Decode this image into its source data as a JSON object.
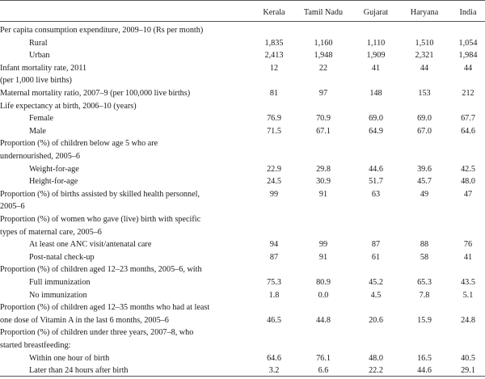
{
  "columns": [
    "Kerala",
    "Tamil Nadu",
    "Gujarat",
    "Haryana",
    "India"
  ],
  "rows": [
    {
      "label": "Per capita consumption expenditure, 2009–10 (Rs per month)",
      "indent": false,
      "values": [
        "",
        "",
        "",
        "",
        ""
      ]
    },
    {
      "label": "Rural",
      "indent": true,
      "values": [
        "1,835",
        "1,160",
        "1,110",
        "1,510",
        "1,054"
      ]
    },
    {
      "label": "Urban",
      "indent": true,
      "values": [
        "2,413",
        "1,948",
        "1,909",
        "2,321",
        "1,984"
      ]
    },
    {
      "label": "Infant mortality rate, 2011",
      "indent": false,
      "values": [
        "12",
        "22",
        "41",
        "44",
        "44"
      ]
    },
    {
      "label": "(per 1,000 live births)",
      "indent": false,
      "values": [
        "",
        "",
        "",
        "",
        ""
      ]
    },
    {
      "label": "Maternal mortality ratio, 2007–9 (per 100,000 live births)",
      "indent": false,
      "values": [
        "81",
        "97",
        "148",
        "153",
        "212"
      ]
    },
    {
      "label": "Life expectancy at birth, 2006–10 (years)",
      "indent": false,
      "values": [
        "",
        "",
        "",
        "",
        ""
      ]
    },
    {
      "label": "Female",
      "indent": true,
      "values": [
        "76.9",
        "70.9",
        "69.0",
        "69.0",
        "67.7"
      ]
    },
    {
      "label": "Male",
      "indent": true,
      "values": [
        "71.5",
        "67.1",
        "64.9",
        "67.0",
        "64.6"
      ]
    },
    {
      "label": "Proportion (%) of children below age 5 who are",
      "indent": false,
      "values": [
        "",
        "",
        "",
        "",
        ""
      ]
    },
    {
      "label": "undernourished, 2005–6",
      "indent": false,
      "values": [
        "",
        "",
        "",
        "",
        ""
      ]
    },
    {
      "label": "Weight-for-age",
      "indent": true,
      "values": [
        "22.9",
        "29.8",
        "44.6",
        "39.6",
        "42.5"
      ]
    },
    {
      "label": "Height-for-age",
      "indent": true,
      "values": [
        "24.5",
        "30.9",
        "51.7",
        "45.7",
        "48.0"
      ]
    },
    {
      "label": "Proportion (%) of births assisted by skilled health personnel,",
      "indent": false,
      "values": [
        "99",
        "91",
        "63",
        "49",
        "47"
      ]
    },
    {
      "label": "2005–6",
      "indent": false,
      "values": [
        "",
        "",
        "",
        "",
        ""
      ]
    },
    {
      "label": "Proportion (%) of women who gave (live) birth with specific",
      "indent": false,
      "values": [
        "",
        "",
        "",
        "",
        ""
      ]
    },
    {
      "label": "types of maternal care, 2005–6",
      "indent": false,
      "values": [
        "",
        "",
        "",
        "",
        ""
      ]
    },
    {
      "label": "At least one ANC visit/antenatal care",
      "indent": true,
      "values": [
        "94",
        "99",
        "87",
        "88",
        "76"
      ]
    },
    {
      "label": "Post-natal check-up",
      "indent": true,
      "values": [
        "87",
        "91",
        "61",
        "58",
        "41"
      ]
    },
    {
      "label": "Proportion (%) of children aged 12–23 months, 2005–6, with",
      "indent": false,
      "values": [
        "",
        "",
        "",
        "",
        ""
      ]
    },
    {
      "label": "Full immunization",
      "indent": true,
      "values": [
        "75.3",
        "80.9",
        "45.2",
        "65.3",
        "43.5"
      ]
    },
    {
      "label": "No immunization",
      "indent": true,
      "values": [
        "1.8",
        "0.0",
        "4.5",
        "7.8",
        "5.1"
      ]
    },
    {
      "label": "Proportion (%) of children aged 12–35 months who had at least",
      "indent": false,
      "values": [
        "",
        "",
        "",
        "",
        ""
      ]
    },
    {
      "label": "one dose of Vitamin A in the last 6 months, 2005–6",
      "indent": false,
      "values": [
        "46.5",
        "44.8",
        "20.6",
        "15.9",
        "24.8"
      ]
    },
    {
      "label": "Proportion (%) of children under three years, 2007–8, who",
      "indent": false,
      "values": [
        "",
        "",
        "",
        "",
        ""
      ]
    },
    {
      "label": "started breastfeeding:",
      "indent": false,
      "values": [
        "",
        "",
        "",
        "",
        ""
      ]
    },
    {
      "label": "Within one hour of birth",
      "indent": true,
      "values": [
        "64.6",
        "76.1",
        "48.0",
        "16.5",
        "40.5"
      ]
    },
    {
      "label": "Later than 24 hours after birth",
      "indent": true,
      "values": [
        "3.2",
        "6.6",
        "22.2",
        "44.6",
        "29.1"
      ]
    }
  ]
}
